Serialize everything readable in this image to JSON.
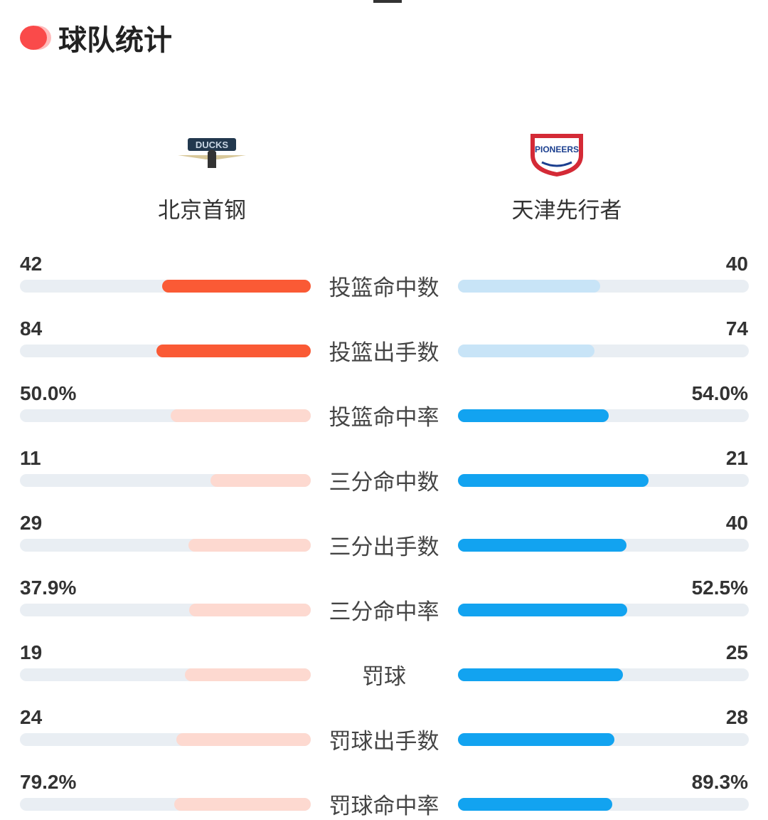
{
  "header": {
    "title": "球队统计"
  },
  "teams": {
    "left": {
      "name": "北京首钢",
      "logo_text": "DUCKS"
    },
    "right": {
      "name": "天津先行者",
      "logo_text": "PIONEERS"
    }
  },
  "colors": {
    "left_win": "#fa5a35",
    "left_lose": "#fdd9d0",
    "right_win": "#12a3f0",
    "right_lose": "#c8e4f7",
    "track": "#e9eef3",
    "dot": "#fa4a4a"
  },
  "stats": {
    "rows": [
      {
        "name": "投篮命中数",
        "left": 42,
        "right": 40
      },
      {
        "name": "投篮出手数",
        "left": 84,
        "right": 74
      },
      {
        "name": "投篮命中率",
        "left": {
          "value": 50,
          "label": "50.0%"
        },
        "right": {
          "value": 54,
          "label": "54.0%"
        }
      },
      {
        "name": "三分命中数",
        "left": 11,
        "right": 21
      },
      {
        "name": "三分出手数",
        "left": 29,
        "right": 40
      },
      {
        "name": "三分命中率",
        "left": {
          "value": 37.9,
          "label": "37.9%"
        },
        "right": {
          "value": 52.5,
          "label": "52.5%"
        }
      },
      {
        "name": "罚球",
        "left": 19,
        "right": 25
      },
      {
        "name": "罚球出手数",
        "left": 24,
        "right": 28
      },
      {
        "name": "罚球命中率",
        "left": {
          "value": 79.2,
          "label": "79.2%"
        },
        "right": {
          "value": 89.3,
          "label": "89.3%"
        }
      }
    ]
  }
}
